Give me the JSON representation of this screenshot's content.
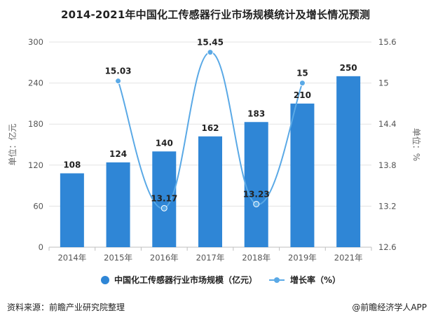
{
  "title": "2014-2021年中国化工传感器行业市场规模统计及增长情况预测",
  "source": "资料来源：前瞻产业研究院整理",
  "brand": "@前瞻经济学人APP",
  "chart_data": {
    "type": "bar",
    "categories": [
      "2014年",
      "2015年",
      "2016年",
      "2017年",
      "2018年",
      "2019年",
      "2021年"
    ],
    "series": [
      {
        "name": "中国化工传感器行业市场规模（亿元）",
        "type": "bar",
        "axis": "left",
        "color": "#2f86d6",
        "values": [
          108,
          124,
          140,
          162,
          183,
          210,
          250
        ],
        "labels": [
          "108",
          "124",
          "140",
          "162",
          "183",
          "210",
          "250"
        ]
      },
      {
        "name": "增长率（%）",
        "type": "line",
        "axis": "right",
        "color": "#5aa9e6",
        "values": [
          null,
          15.03,
          13.17,
          15.45,
          13.23,
          15,
          null
        ],
        "labels": [
          "",
          "15.03",
          "13.17",
          "15.45",
          "13.23",
          "15",
          ""
        ]
      }
    ],
    "y_left": {
      "label": "单位：亿元",
      "ylim": [
        0,
        300
      ],
      "ticks": [
        "0",
        "60",
        "120",
        "180",
        "240",
        "300"
      ]
    },
    "y_right": {
      "label": "单位：%",
      "ylim": [
        12.6,
        15.6
      ],
      "ticks": [
        "12.6",
        "13.2",
        "13.8",
        "14.4",
        "15",
        "15.6"
      ]
    },
    "grid": true,
    "legend_position": "bottom"
  }
}
